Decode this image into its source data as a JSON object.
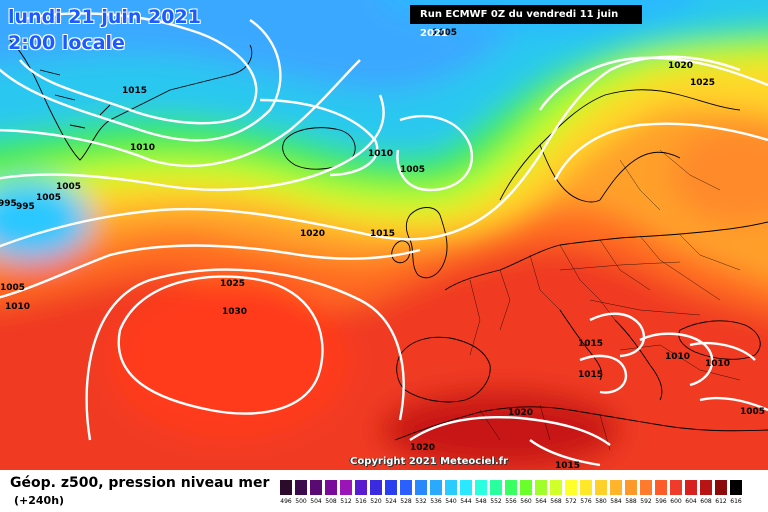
{
  "header": {
    "date_line": "lundi 21 juin 2021",
    "time_line": "2:00 locale",
    "run_info": "Run ECMWF 0Z du vendredi 11 juin 2021"
  },
  "footer": {
    "title": "Géop. z500, pression niveau mer",
    "subtitle": "(+240h)",
    "copyright": "Copyright 2021 Meteociel.fr"
  },
  "pressure_labels": [
    "1005",
    "1015",
    "1010",
    "1005",
    "995",
    "995",
    "1005",
    "1010",
    "1020",
    "1025",
    "1010",
    "1005",
    "1020",
    "1015",
    "1025",
    "1030",
    "1015",
    "1015",
    "1010",
    "1010",
    "1020",
    "1005",
    "1020",
    "1015"
  ],
  "color_scale": {
    "labels": [
      "496",
      "500",
      "504",
      "508",
      "512",
      "516",
      "520",
      "524",
      "528",
      "532",
      "536",
      "540",
      "544",
      "548",
      "552",
      "556",
      "560",
      "564",
      "568",
      "572",
      "576",
      "580",
      "584",
      "588",
      "592",
      "596",
      "600",
      "604",
      "608",
      "612",
      "616"
    ],
    "colors": [
      "#2b0a2b",
      "#3d0a4d",
      "#5b0a73",
      "#7a0a99",
      "#9a14b8",
      "#5a1ad0",
      "#3a2ae0",
      "#2a40f0",
      "#2a60ff",
      "#2a88ff",
      "#2aaaff",
      "#2accff",
      "#2ae8ff",
      "#2affe0",
      "#2affa0",
      "#3aff60",
      "#6aff2a",
      "#a0ff2a",
      "#d0ff2a",
      "#ffff2a",
      "#ffe82a",
      "#ffd02a",
      "#ffb42a",
      "#ff982a",
      "#ff7a2a",
      "#ff5a2a",
      "#f03a2a",
      "#d82020",
      "#b81414",
      "#8c0a0a",
      "#000000"
    ]
  }
}
